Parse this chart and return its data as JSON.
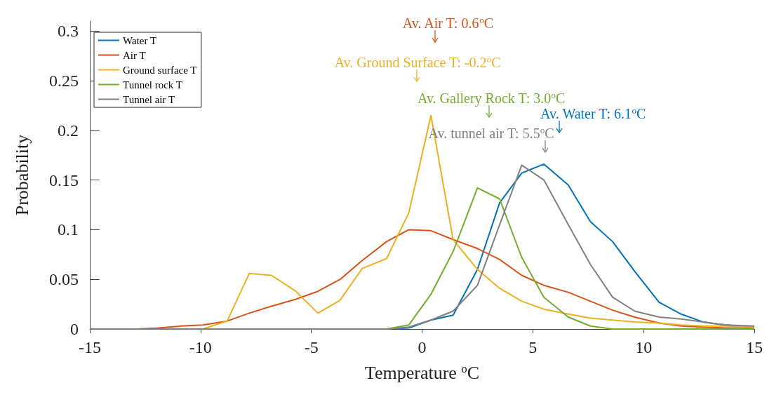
{
  "chart_data": {
    "type": "line",
    "xlabel": "Temperature $^{o}$C",
    "ylabel": "Probability",
    "x": [
      -15,
      -13.9,
      -12.9,
      -11.9,
      -10.9,
      -9.9,
      -8.8,
      -7.8,
      -6.8,
      -5.7,
      -4.7,
      -3.7,
      -2.7,
      -1.6,
      -0.6,
      0.4,
      1.4,
      2.5,
      3.5,
      4.5,
      5.5,
      6.6,
      7.6,
      8.6,
      9.6,
      10.7,
      11.7,
      12.7,
      13.7,
      15
    ],
    "series": [
      {
        "name": "Water T",
        "color": "#0072bd",
        "values": [
          null,
          null,
          null,
          null,
          null,
          null,
          null,
          null,
          null,
          null,
          null,
          null,
          null,
          0,
          0.001,
          0.009,
          0.014,
          0.06,
          0.127,
          0.157,
          0.166,
          0.145,
          0.108,
          0.088,
          0.058,
          0.027,
          0.015,
          0.007,
          0.004,
          0.002
        ]
      },
      {
        "name": "Air T",
        "color": "#d95319",
        "values": [
          null,
          null,
          0,
          0.001,
          0.003,
          0.004,
          0.008,
          0.016,
          0.023,
          0.03,
          0.038,
          0.05,
          0.069,
          0.088,
          0.1,
          0.099,
          0.09,
          0.081,
          0.07,
          0.054,
          0.044,
          0.037,
          0.028,
          0.019,
          0.012,
          0.006,
          0.003,
          0.002,
          0.001,
          0.001
        ]
      },
      {
        "name": "Ground surface T",
        "color": "#edb120",
        "values": [
          null,
          null,
          null,
          null,
          null,
          0,
          0.008,
          0.056,
          0.054,
          0.038,
          0.016,
          0.029,
          0.061,
          0.071,
          0.117,
          0.215,
          0.09,
          0.06,
          0.041,
          0.028,
          0.02,
          0.015,
          0.011,
          0.009,
          0.007,
          0.006,
          0.004,
          0.003,
          0.003,
          0.002
        ]
      },
      {
        "name": "Tunnel rock T",
        "color": "#77ac30",
        "values": [
          null,
          null,
          null,
          null,
          null,
          null,
          null,
          null,
          null,
          null,
          null,
          null,
          null,
          0,
          0.004,
          0.035,
          0.078,
          0.142,
          0.131,
          0.072,
          0.032,
          0.012,
          0.003,
          0,
          0,
          0,
          0,
          0,
          0,
          0
        ]
      },
      {
        "name": "Tunnel air T",
        "color": "#808080",
        "values": [
          0,
          0,
          0,
          0,
          0,
          0,
          0,
          0,
          0,
          0,
          0,
          0,
          0,
          0,
          0.002,
          0.009,
          0.018,
          0.044,
          0.105,
          0.165,
          0.15,
          0.105,
          0.065,
          0.032,
          0.018,
          0.012,
          0.01,
          0.007,
          0.004,
          0.003
        ]
      }
    ],
    "annotations": [
      "Av. Water T: 6.1$^{o}$C",
      "Av. Air T: 0.6$^{o}$C",
      "Av. Ground Surface T: -0.2$^{o}$C",
      "Av. Gallery Rock T: 3.0$^{o}$C",
      "Av. tunnel air T: 5.5$^{o}$C"
    ],
    "xlim": [
      -15,
      15
    ],
    "xticks": [
      -15,
      -10,
      -5,
      0,
      5,
      10,
      15
    ],
    "ylim": [
      0,
      0.31
    ],
    "yticks": [
      0,
      0.05,
      0.1,
      0.15,
      0.2,
      0.25,
      0.3
    ],
    "grid": false,
    "legend": "top left",
    "marker": "none",
    "line_style": "solid"
  }
}
